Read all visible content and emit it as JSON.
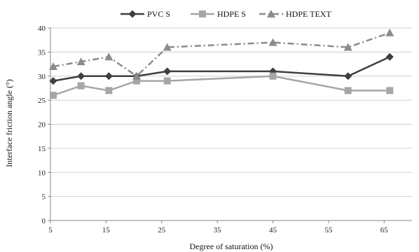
{
  "chart_data": {
    "type": "line",
    "title": "",
    "xlabel": "Degree of saturation (%)",
    "ylabel": "Interface friction angle (°)",
    "xlim": [
      5,
      70
    ],
    "ylim": [
      0,
      40
    ],
    "xticks": [
      5,
      15,
      25,
      35,
      45,
      55,
      65
    ],
    "yticks": [
      0,
      5,
      10,
      15,
      20,
      25,
      30,
      35,
      40
    ],
    "grid": true,
    "legend": "top",
    "series": [
      {
        "name": "PVC S",
        "color": "#3f3f3f",
        "marker": "diamond",
        "dash": "solid",
        "points": [
          [
            5.5,
            29
          ],
          [
            10.5,
            30
          ],
          [
            15.5,
            30
          ],
          [
            20.5,
            30
          ],
          [
            26,
            31
          ],
          [
            45,
            31
          ],
          [
            58.5,
            30
          ],
          [
            66,
            34
          ]
        ]
      },
      {
        "name": "HDPE S",
        "color": "#a6a6a6",
        "marker": "square",
        "dash": "solid",
        "points": [
          [
            5.5,
            26
          ],
          [
            10.5,
            28
          ],
          [
            15.5,
            27
          ],
          [
            20.5,
            29
          ],
          [
            26,
            29
          ],
          [
            45,
            30
          ],
          [
            58.5,
            27
          ],
          [
            66,
            27
          ]
        ]
      },
      {
        "name": "HDPE TEXT",
        "color": "#8c8c8c",
        "marker": "triangle",
        "dash": "dashdot",
        "points": [
          [
            5.5,
            32
          ],
          [
            10.5,
            33
          ],
          [
            15.5,
            34
          ],
          [
            20.5,
            30
          ],
          [
            26,
            36
          ],
          [
            45,
            37
          ],
          [
            58.5,
            36
          ],
          [
            66,
            39
          ]
        ]
      }
    ]
  }
}
